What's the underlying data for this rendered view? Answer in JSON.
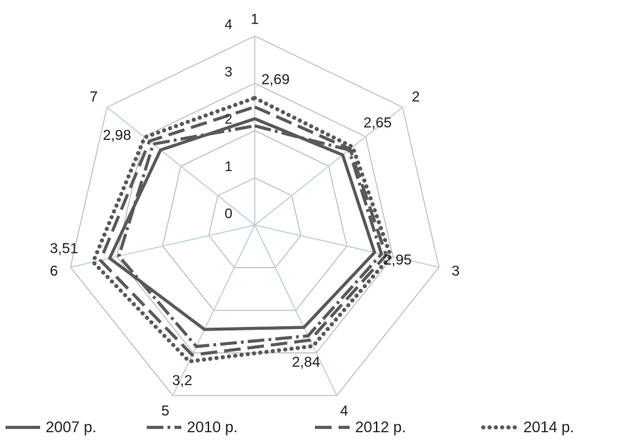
{
  "chart_data": {
    "type": "radar",
    "categories": [
      "1",
      "2",
      "3",
      "4",
      "5",
      "6",
      "7"
    ],
    "rlim": [
      0,
      4
    ],
    "ticks": [
      "0",
      "1",
      "2",
      "3",
      "4"
    ],
    "series": [
      {
        "name": "2007 р.",
        "values": [
          2.25,
          2.38,
          2.6,
          2.4,
          2.45,
          3.15,
          2.55
        ]
      },
      {
        "name": "2010 р.",
        "values": [
          2.1,
          2.55,
          2.75,
          2.6,
          2.85,
          2.95,
          2.75
        ]
      },
      {
        "name": "2012 р.",
        "values": [
          2.5,
          2.58,
          2.85,
          2.7,
          3.05,
          3.35,
          2.85
        ]
      },
      {
        "name": "2014 р.",
        "values": [
          2.69,
          2.65,
          2.95,
          2.84,
          3.2,
          3.51,
          2.98
        ]
      }
    ],
    "data_labels": [
      "2,69",
      "2,65",
      "2,95",
      "2,84",
      "3,2",
      "3,51",
      "2,98"
    ],
    "grid": true,
    "legend": "bottom",
    "colors": {
      "series": "#595959",
      "spokes": "#b8cce4",
      "grid": "#a6a6a6"
    }
  }
}
